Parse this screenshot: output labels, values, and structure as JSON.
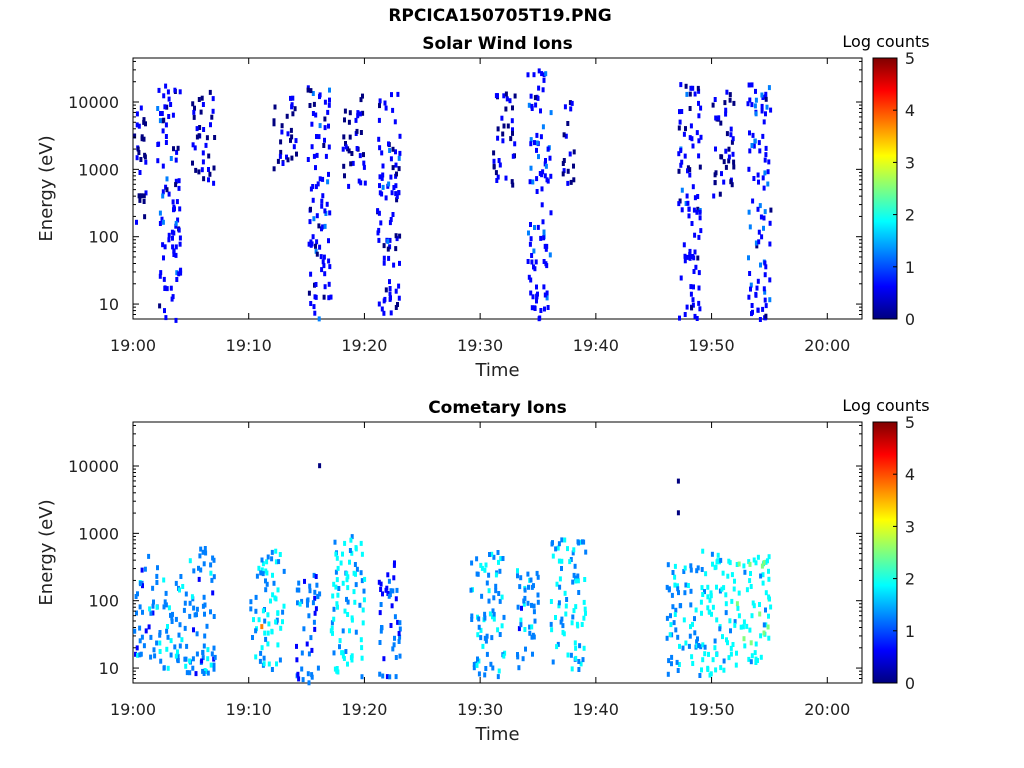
{
  "figure_title": "RPCICA150705T19.PNG",
  "colorbar": {
    "colors": [
      "#00007f",
      "#0000ff",
      "#007fff",
      "#00ffff",
      "#7fff7f",
      "#ffff00",
      "#ff7f00",
      "#ff0000",
      "#7f0000"
    ]
  },
  "chart_data": [
    {
      "type": "heatmap",
      "title": "Solar Wind Ions",
      "xlabel": "Time",
      "ylabel": "Energy (eV)",
      "x_ticks": [
        "19:00",
        "19:10",
        "19:20",
        "19:30",
        "19:40",
        "19:50",
        "20:00"
      ],
      "xlim": [
        "19:00",
        "20:03"
      ],
      "y_scale": "log",
      "y_ticks": [
        "10",
        "100",
        "1000",
        "10000"
      ],
      "ylim": [
        6,
        45000
      ],
      "colorbar_label": "Log counts",
      "colorbar_ticks": [
        "0",
        "1",
        "2",
        "3",
        "4",
        "5"
      ],
      "colorbar_range": [
        0,
        5
      ],
      "clusters": [
        {
          "t_start": "19:00",
          "t_end": "19:01",
          "e_min": 100,
          "e_max": 14000,
          "level": 0.2
        },
        {
          "t_start": "19:02",
          "t_end": "19:04",
          "e_min": 6,
          "e_max": 20000,
          "level": 0.6
        },
        {
          "t_start": "19:05",
          "t_end": "19:07",
          "e_min": 600,
          "e_max": 16000,
          "level": 0.3
        },
        {
          "t_start": "19:12",
          "t_end": "19:14",
          "e_min": 1000,
          "e_max": 13000,
          "level": 0.3
        },
        {
          "t_start": "19:15",
          "t_end": "19:17",
          "e_min": 6,
          "e_max": 18000,
          "level": 0.6
        },
        {
          "t_start": "19:18",
          "t_end": "19:20",
          "e_min": 600,
          "e_max": 14000,
          "level": 0.3
        },
        {
          "t_start": "19:21",
          "t_end": "19:23",
          "e_min": 6,
          "e_max": 15000,
          "level": 0.6
        },
        {
          "t_start": "19:31",
          "t_end": "19:33",
          "e_min": 600,
          "e_max": 15000,
          "level": 0.3
        },
        {
          "t_start": "19:34",
          "t_end": "19:36",
          "e_min": 6,
          "e_max": 32000,
          "level": 0.7
        },
        {
          "t_start": "19:37",
          "t_end": "19:38",
          "e_min": 600,
          "e_max": 15000,
          "level": 0.3
        },
        {
          "t_start": "19:47",
          "t_end": "19:49",
          "e_min": 6,
          "e_max": 20000,
          "level": 0.6
        },
        {
          "t_start": "19:50",
          "t_end": "19:52",
          "e_min": 400,
          "e_max": 16000,
          "level": 0.3
        },
        {
          "t_start": "19:53",
          "t_end": "19:55",
          "e_min": 6,
          "e_max": 20000,
          "level": 0.7
        }
      ]
    },
    {
      "type": "heatmap",
      "title": "Cometary Ions",
      "xlabel": "Time",
      "ylabel": "Energy (eV)",
      "x_ticks": [
        "19:00",
        "19:10",
        "19:20",
        "19:30",
        "19:40",
        "19:50",
        "20:00"
      ],
      "xlim": [
        "19:00",
        "20:03"
      ],
      "y_scale": "log",
      "y_ticks": [
        "10",
        "100",
        "1000",
        "10000"
      ],
      "ylim": [
        6,
        45000
      ],
      "colorbar_label": "Log counts",
      "colorbar_ticks": [
        "0",
        "1",
        "2",
        "3",
        "4",
        "5"
      ],
      "colorbar_range": [
        0,
        5
      ],
      "clusters": [
        {
          "t_start": "19:00",
          "t_end": "19:02",
          "e_min": 15,
          "e_max": 500,
          "level": 1.2
        },
        {
          "t_start": "19:02",
          "t_end": "19:04",
          "e_min": 10,
          "e_max": 300,
          "level": 1.5
        },
        {
          "t_start": "19:04",
          "t_end": "19:07",
          "e_min": 8,
          "e_max": 700,
          "level": 1.3
        },
        {
          "t_start": "19:10",
          "t_end": "19:13",
          "e_min": 10,
          "e_max": 600,
          "level": 1.6
        },
        {
          "t_start": "19:14",
          "t_end": "19:16",
          "e_min": 6,
          "e_max": 300,
          "level": 1.2
        },
        {
          "t_start": "19:17",
          "t_end": "19:20",
          "e_min": 8,
          "e_max": 1000,
          "level": 1.7
        },
        {
          "t_start": "19:21",
          "t_end": "19:23",
          "e_min": 8,
          "e_max": 400,
          "level": 1.0
        },
        {
          "t_start": "19:29",
          "t_end": "19:32",
          "e_min": 8,
          "e_max": 600,
          "level": 1.4
        },
        {
          "t_start": "19:33",
          "t_end": "19:35",
          "e_min": 10,
          "e_max": 400,
          "level": 1.3
        },
        {
          "t_start": "19:36",
          "t_end": "19:39",
          "e_min": 10,
          "e_max": 900,
          "level": 1.6
        },
        {
          "t_start": "19:46",
          "t_end": "19:49",
          "e_min": 8,
          "e_max": 400,
          "level": 1.4
        },
        {
          "t_start": "19:49",
          "t_end": "19:52",
          "e_min": 8,
          "e_max": 600,
          "level": 1.8
        },
        {
          "t_start": "19:52",
          "t_end": "19:55",
          "e_min": 10,
          "e_max": 500,
          "level": 1.9
        }
      ],
      "isolated_points": [
        {
          "t": "19:16",
          "e": 11000,
          "level": 0.3
        },
        {
          "t": "19:47",
          "e": 6500,
          "level": 0.3
        },
        {
          "t": "19:47",
          "e": 2200,
          "level": 0.3
        },
        {
          "t": "19:11",
          "e": 45,
          "level": 3.6
        }
      ]
    }
  ]
}
